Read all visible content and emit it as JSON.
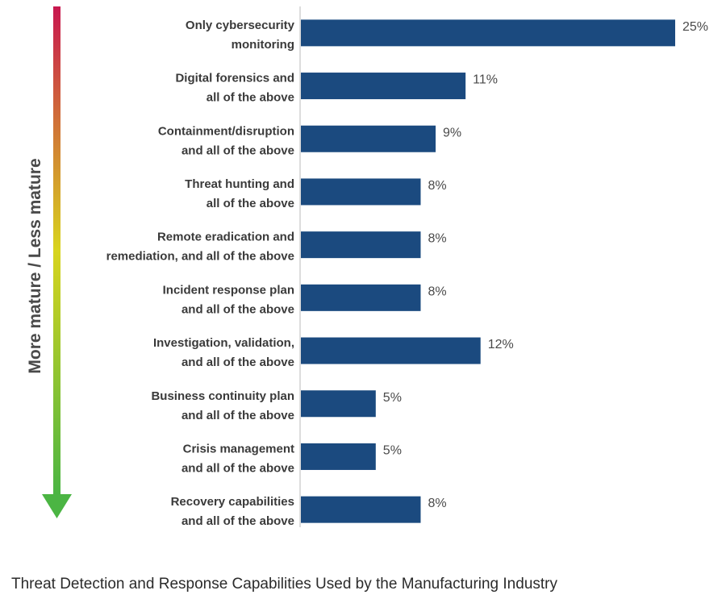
{
  "chart_data": {
    "type": "bar",
    "orientation": "horizontal",
    "categories": [
      [
        "Only cybersecurity",
        "monitoring"
      ],
      [
        "Digital forensics and",
        "all of the above"
      ],
      [
        "Containment/disruption",
        "and all of the above"
      ],
      [
        "Threat hunting and",
        "all of the above"
      ],
      [
        "Remote eradication and",
        "remediation, and all of the above"
      ],
      [
        "Incident response plan",
        "and all of the above"
      ],
      [
        "Investigation, validation,",
        "and all of the above"
      ],
      [
        "Business continuity plan",
        "and all of the above"
      ],
      [
        "Crisis management",
        "and all of the above"
      ],
      [
        "Recovery capabilities",
        "and all of the above"
      ]
    ],
    "values": [
      25,
      11,
      9,
      8,
      8,
      8,
      12,
      5,
      5,
      8
    ],
    "value_labels": [
      "25%",
      "11%",
      "9%",
      "8%",
      "8%",
      "8%",
      "12%",
      "5%",
      "5%",
      "8%"
    ],
    "xlim": [
      0,
      25
    ],
    "ylabel": "More mature / Less mature",
    "grid": false,
    "legend": "none"
  },
  "caption": "Threat Detection and Response Capabilities Used by the Manufacturing Industry",
  "colors": {
    "bar": "#1b4a7f",
    "arrow_top": "#c8174f",
    "arrow_mid": "#d8d41e",
    "arrow_bottom": "#4bb543",
    "axis": "#bbbbbb"
  }
}
